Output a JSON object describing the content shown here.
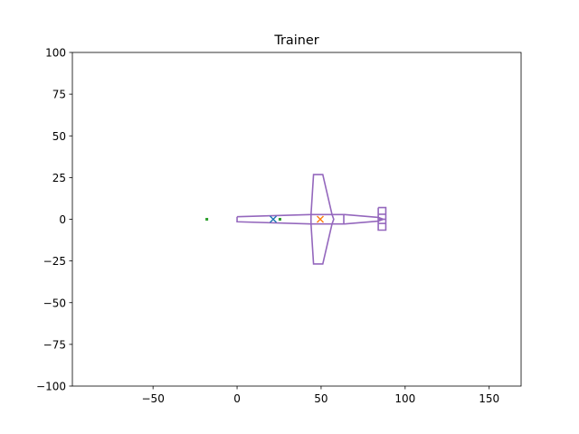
{
  "chart_data": {
    "type": "scatter",
    "title": "Trainer",
    "xlabel": "",
    "ylabel": "",
    "xlim": [
      -98,
      169
    ],
    "ylim": [
      -100,
      100
    ],
    "xticks": [
      -50,
      0,
      50,
      100,
      150
    ],
    "yticks": [
      -100,
      -75,
      -50,
      -25,
      0,
      25,
      50,
      75,
      100
    ],
    "xtick_labels": [
      "−50",
      "0",
      "50",
      "100",
      "150"
    ],
    "ytick_labels": [
      "−100",
      "−75",
      "−50",
      "−25",
      "0",
      "25",
      "50",
      "75",
      "100"
    ],
    "grid": false,
    "outline": {
      "color": "#9467bd",
      "parts": [
        {
          "name": "fuselage",
          "points": [
            [
              0,
              1.5
            ],
            [
              44,
              2.8
            ],
            [
              64,
              2.8
            ],
            [
              84,
              1.1
            ],
            [
              87,
              0
            ],
            [
              84,
              -1.1
            ],
            [
              64,
              -2.8
            ],
            [
              44,
              -2.8
            ],
            [
              0,
              -1.5
            ],
            [
              0,
              1.5
            ]
          ]
        },
        {
          "name": "wing",
          "points": [
            [
              44,
              2.8
            ],
            [
              45.5,
              26.8
            ],
            [
              51,
              26.8
            ],
            [
              56.5,
              2.8
            ],
            [
              57.5,
              0
            ],
            [
              56.5,
              -2.8
            ],
            [
              51,
              -26.8
            ],
            [
              45.5,
              -26.8
            ],
            [
              44,
              -2.8
            ]
          ]
        },
        {
          "name": "wing-root",
          "points": [
            [
              44,
              2.8
            ],
            [
              44,
              -2.8
            ]
          ]
        },
        {
          "name": "tail-root",
          "points": [
            [
              63.5,
              2.8
            ],
            [
              63.5,
              -2.8
            ]
          ]
        },
        {
          "name": "horizontal-tail",
          "points": [
            [
              84,
              7
            ],
            [
              88.5,
              7
            ],
            [
              88.5,
              -6.5
            ],
            [
              84,
              -6.5
            ],
            [
              84,
              7
            ]
          ]
        },
        {
          "name": "tail-rib-1",
          "points": [
            [
              84,
              3
            ],
            [
              88.5,
              3
            ]
          ]
        },
        {
          "name": "tail-rib-2",
          "points": [
            [
              84,
              -2.5
            ],
            [
              88.5,
              -2.5
            ]
          ]
        },
        {
          "name": "tail-rib-center",
          "points": [
            [
              84,
              0
            ],
            [
              88.5,
              0
            ]
          ]
        }
      ]
    },
    "markers": [
      {
        "name": "blue-x",
        "x": 21.5,
        "y": 0,
        "color": "#1f77b4",
        "symbol": "x"
      },
      {
        "name": "orange-x",
        "x": 49.5,
        "y": 0,
        "color": "#ff7f0e",
        "symbol": "x"
      },
      {
        "name": "green-point-left",
        "x": -18,
        "y": 0,
        "color": "#2ca02c",
        "symbol": "square"
      },
      {
        "name": "green-point-right",
        "x": 25.5,
        "y": 0,
        "color": "#2ca02c",
        "symbol": "square"
      }
    ]
  }
}
